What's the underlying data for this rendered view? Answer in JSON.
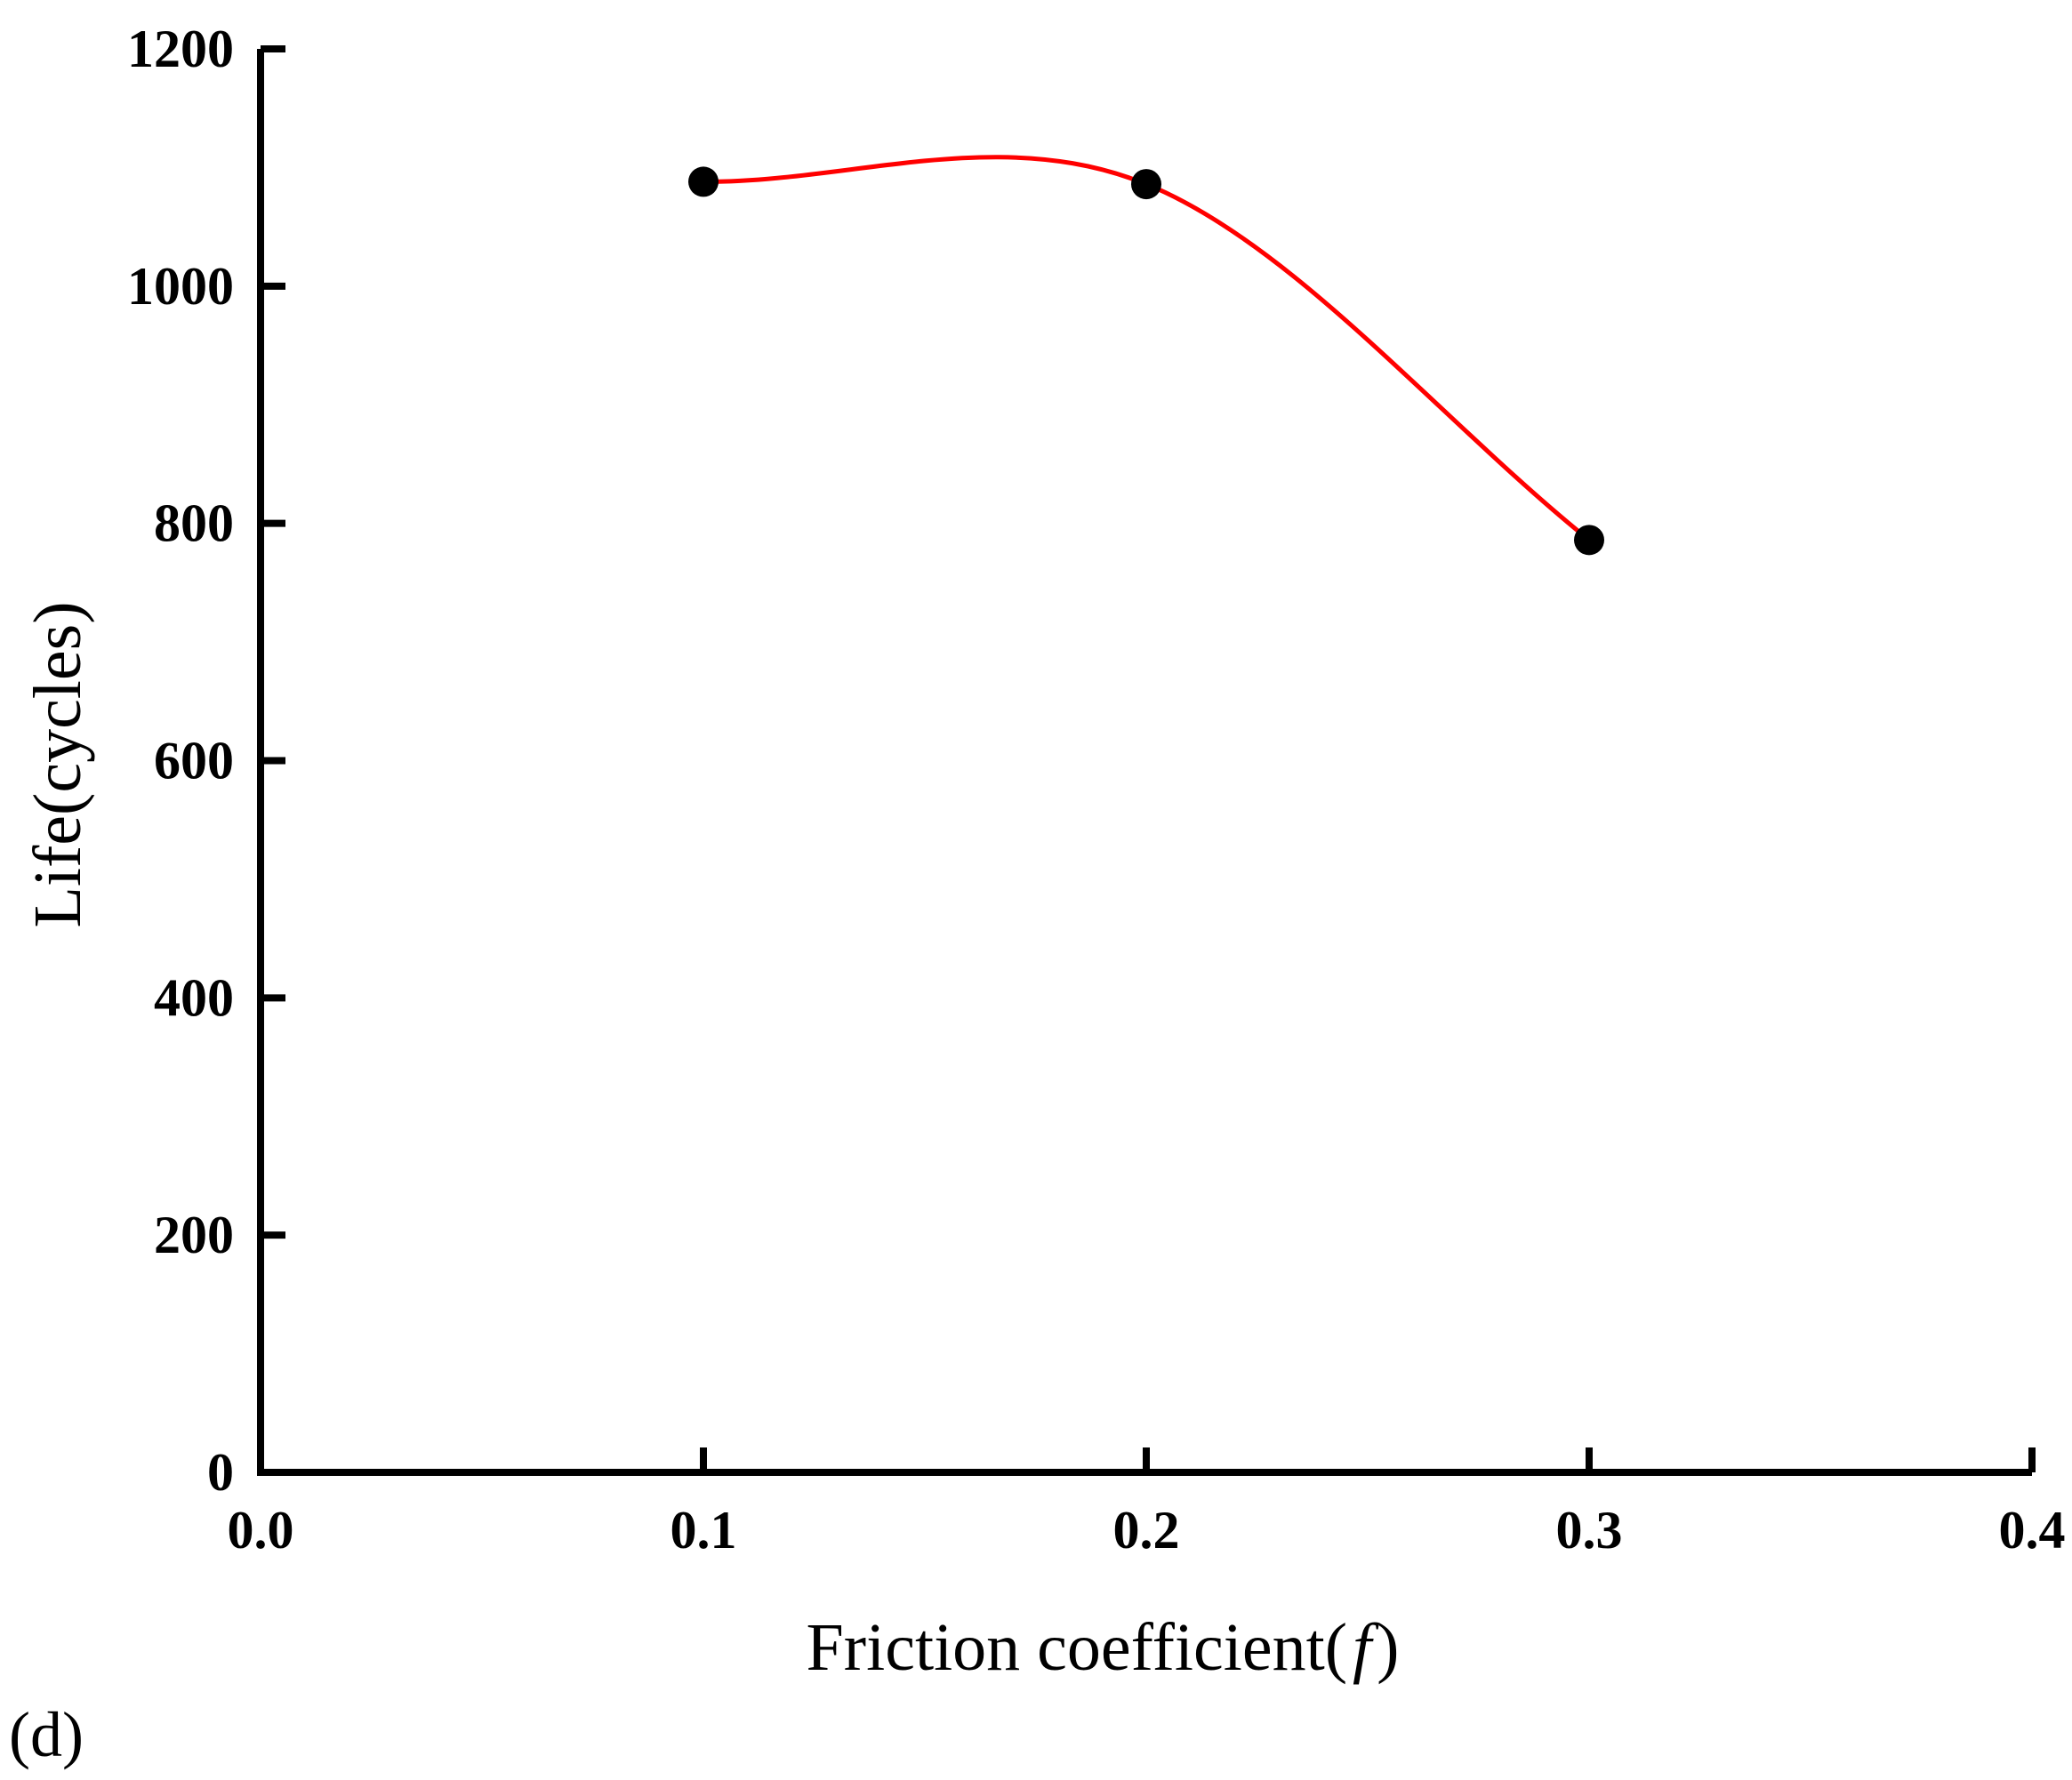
{
  "panel_label_text": "(d)",
  "chart_data": {
    "type": "line",
    "title": "",
    "xlabel": "Friction coefficient(",
    "xlabel_var": "f",
    "xlabel_close": ")",
    "ylabel": "Life(cycles)",
    "xlim": [
      0.0,
      0.4
    ],
    "ylim": [
      0,
      1200
    ],
    "xticks": [
      0.0,
      0.1,
      0.2,
      0.3,
      0.4
    ],
    "xtick_labels": [
      "0.0",
      "0.1",
      "0.2",
      "0.3",
      "0.4"
    ],
    "yticks": [
      0,
      200,
      400,
      600,
      800,
      1000,
      1200
    ],
    "ytick_labels": [
      "0",
      "200",
      "400",
      "600",
      "800",
      "1000",
      "1200"
    ],
    "grid": false,
    "legend": "none",
    "series": [
      {
        "x": [
          0.1,
          0.2,
          0.3
        ],
        "y": [
          1088,
          1086,
          786
        ],
        "line_color": "#ff0000",
        "marker_color": "#000000",
        "smooth": true
      }
    ]
  }
}
